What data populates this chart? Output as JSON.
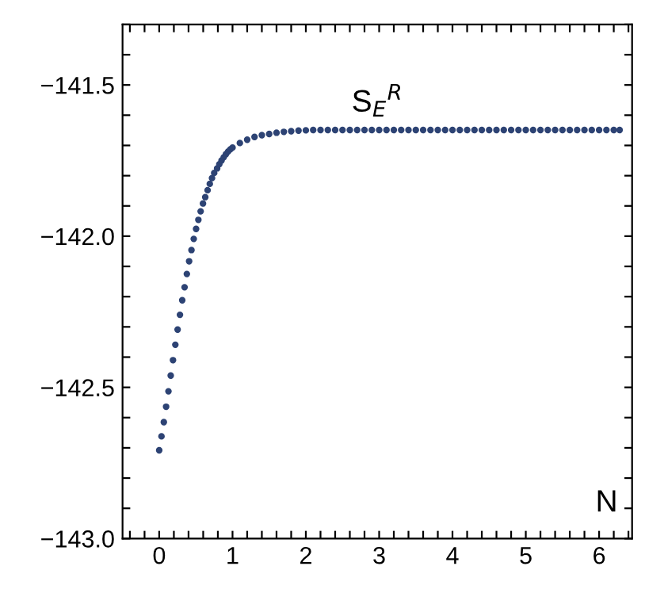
{
  "chart_data": {
    "type": "scatter",
    "xlabel": "N",
    "marker": "circle",
    "grid": false,
    "legend": false,
    "annotations": [
      "S$_{E}$$^{R}$"
    ],
    "xlim": [
      -0.5,
      6.45
    ],
    "ylim": [
      -143.0,
      -141.3
    ],
    "xticks": [
      {
        "value": -0.4,
        "label": null
      },
      {
        "value": -0.2,
        "label": null
      },
      0,
      {
        "value": 0.2,
        "label": null
      },
      {
        "value": 0.4,
        "label": null
      },
      {
        "value": 0.6,
        "label": null
      },
      {
        "value": 0.8,
        "label": null
      },
      1,
      {
        "value": 1.2,
        "label": null
      },
      {
        "value": 1.4,
        "label": null
      },
      {
        "value": 1.6,
        "label": null
      },
      {
        "value": 1.8,
        "label": null
      },
      2,
      {
        "value": 2.2,
        "label": null
      },
      {
        "value": 2.4,
        "label": null
      },
      {
        "value": 2.6,
        "label": null
      },
      {
        "value": 2.8,
        "label": null
      },
      3,
      {
        "value": 3.2,
        "label": null
      },
      {
        "value": 3.4,
        "label": null
      },
      {
        "value": 3.6,
        "label": null
      },
      {
        "value": 3.8,
        "label": null
      },
      4,
      {
        "value": 4.2,
        "label": null
      },
      {
        "value": 4.4,
        "label": null
      },
      {
        "value": 4.6,
        "label": null
      },
      {
        "value": 4.8,
        "label": null
      },
      5,
      {
        "value": 5.2,
        "label": null
      },
      {
        "value": 5.4,
        "label": null
      },
      {
        "value": 5.6,
        "label": null
      },
      {
        "value": 5.8,
        "label": null
      },
      6,
      {
        "value": 6.2,
        "label": null
      },
      {
        "value": 6.4,
        "label": null
      }
    ],
    "yticks": [
      {
        "value": -143.0,
        "label": "−143.0"
      },
      {
        "value": -142.9,
        "label": null
      },
      {
        "value": -142.8,
        "label": null
      },
      {
        "value": -142.7,
        "label": null
      },
      {
        "value": -142.6,
        "label": null
      },
      {
        "value": -142.5,
        "label": "−142.5"
      },
      {
        "value": -142.4,
        "label": null
      },
      {
        "value": -142.3,
        "label": null
      },
      {
        "value": -142.2,
        "label": null
      },
      {
        "value": -142.1,
        "label": null
      },
      {
        "value": -142.0,
        "label": "−142.0"
      },
      {
        "value": -141.9,
        "label": null
      },
      {
        "value": -141.8,
        "label": null
      },
      {
        "value": -141.7,
        "label": null
      },
      {
        "value": -141.6,
        "label": null
      },
      {
        "value": -141.5,
        "label": "−141.5"
      },
      {
        "value": -141.4,
        "label": null
      },
      {
        "value": -141.3,
        "label": null
      }
    ],
    "series": [
      {
        "color": "#2d4374",
        "x": [
          0,
          0.031,
          0.063,
          0.094,
          0.126,
          0.157,
          0.188,
          0.22,
          0.251,
          0.283,
          0.314,
          0.346,
          0.377,
          0.408,
          0.44,
          0.471,
          0.503,
          0.534,
          0.565,
          0.597,
          0.628,
          0.66,
          0.69,
          0.72,
          0.75,
          0.79,
          0.82,
          0.85,
          0.88,
          0.91,
          0.94,
          0.97,
          1.0,
          1.1,
          1.2,
          1.3,
          1.4,
          1.5,
          1.6,
          1.7,
          1.8,
          1.9,
          2.0,
          2.1,
          2.2,
          2.3,
          2.4,
          2.5,
          2.6,
          2.7,
          2.8,
          2.9,
          3.0,
          3.1,
          3.2,
          3.3,
          3.4,
          3.5,
          3.6,
          3.7,
          3.8,
          3.9,
          4.0,
          4.1,
          4.2,
          4.3,
          4.4,
          4.5,
          4.6,
          4.7,
          4.8,
          4.9,
          5.0,
          5.1,
          5.2,
          5.3,
          5.4,
          5.5,
          5.6,
          5.7,
          5.8,
          5.9,
          6.0,
          6.1,
          6.2,
          6.28
        ],
        "values": [
          -142.708,
          -142.662,
          -142.615,
          -142.564,
          -142.513,
          -142.461,
          -142.41,
          -142.359,
          -142.309,
          -142.26,
          -142.212,
          -142.169,
          -142.125,
          -142.083,
          -142.046,
          -142.009,
          -141.976,
          -141.946,
          -141.918,
          -141.892,
          -141.871,
          -141.848,
          -141.827,
          -141.808,
          -141.791,
          -141.776,
          -141.762,
          -141.75,
          -141.739,
          -141.729,
          -141.72,
          -141.713,
          -141.707,
          -141.692,
          -141.681,
          -141.672,
          -141.666,
          -141.662,
          -141.658,
          -141.655,
          -141.653,
          -141.651,
          -141.65,
          -141.649,
          -141.649,
          -141.649,
          -141.649,
          -141.649,
          -141.649,
          -141.649,
          -141.649,
          -141.649,
          -141.649,
          -141.649,
          -141.649,
          -141.649,
          -141.649,
          -141.649,
          -141.649,
          -141.649,
          -141.649,
          -141.649,
          -141.649,
          -141.649,
          -141.649,
          -141.649,
          -141.649,
          -141.649,
          -141.649,
          -141.649,
          -141.649,
          -141.649,
          -141.649,
          -141.649,
          -141.649,
          -141.649,
          -141.649,
          -141.649,
          -141.649,
          -141.649,
          -141.649,
          -141.649,
          -141.649,
          -141.649,
          -141.649,
          -141.649
        ]
      }
    ]
  }
}
